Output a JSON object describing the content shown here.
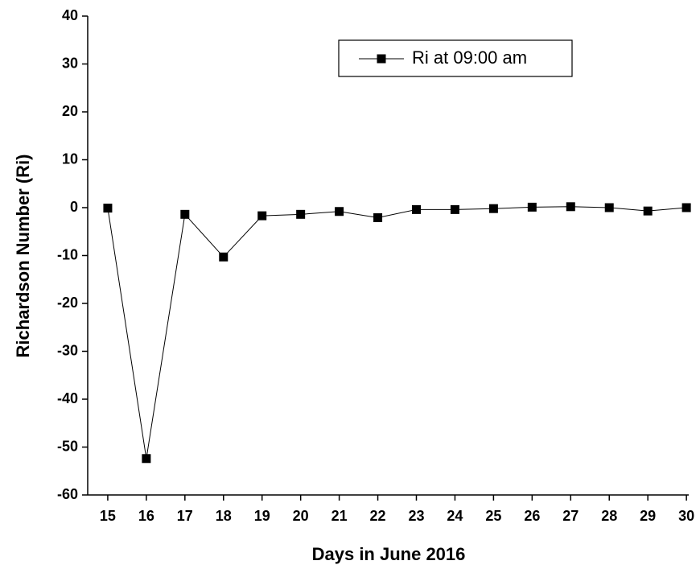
{
  "chart_data": {
    "type": "line",
    "x_label": "Days in June 2016",
    "y_label": "Richardson Number (Ri)",
    "x": [
      15,
      16,
      17,
      18,
      19,
      20,
      21,
      22,
      23,
      24,
      25,
      26,
      27,
      28,
      29,
      30
    ],
    "series": [
      {
        "name": "Ri at 09:00 am",
        "color": "#000000",
        "values": [
          -0.1,
          -52.4,
          -1.4,
          -10.3,
          -1.7,
          -1.4,
          -0.8,
          -2.1,
          -0.4,
          -0.4,
          -0.2,
          0.1,
          0.2,
          0.0,
          -0.7,
          0.0
        ]
      }
    ],
    "xlim": [
      14.48,
      30.06
    ],
    "xticks": [
      15,
      16,
      17,
      18,
      19,
      20,
      21,
      22,
      23,
      24,
      25,
      26,
      27,
      28,
      29,
      30
    ],
    "ylim": [
      -60,
      40
    ],
    "yticks": [
      -60,
      -50,
      -40,
      -30,
      -20,
      -10,
      0,
      10,
      20,
      30,
      40
    ],
    "grid": false,
    "legend": "top-right"
  }
}
